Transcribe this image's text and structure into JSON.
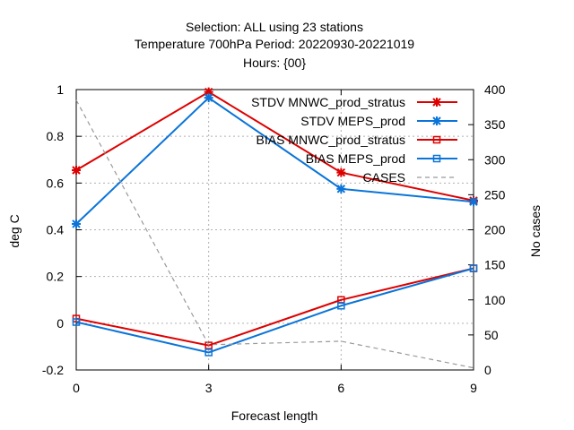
{
  "chart_data": {
    "type": "line",
    "title_lines": [
      "Selection: ALL using    23 stations",
      "Temperature 700hPa   Period: 20220930-20221019",
      "Hours: {00}"
    ],
    "xlabel": "Forecast length",
    "ylabel": "deg C",
    "y2label": "No cases",
    "x": [
      0,
      3,
      6,
      9
    ],
    "xlim": [
      0,
      9
    ],
    "ylim": [
      -0.2,
      1.0
    ],
    "y2lim": [
      0,
      400
    ],
    "x_ticks": [
      "0",
      "3",
      "6",
      "9"
    ],
    "y_ticks": [
      "-0.2",
      "0",
      "0.2",
      "0.4",
      "0.6",
      "0.8",
      "1"
    ],
    "y2_ticks": [
      "0",
      "50",
      "100",
      "150",
      "200",
      "250",
      "300",
      "350",
      "400"
    ],
    "grid": true,
    "legend_position": "top-right",
    "series": [
      {
        "name": "STDV MNWC_prod_stratus",
        "axis": "y",
        "marker": "star",
        "color": "#dd0000",
        "values": [
          0.655,
          0.99,
          0.645,
          0.525
        ]
      },
      {
        "name": "STDV MEPS_prod",
        "axis": "y",
        "marker": "star",
        "color": "#0a74d8",
        "values": [
          0.425,
          0.965,
          0.575,
          0.52
        ]
      },
      {
        "name": "BIAS MNWC_prod_stratus",
        "axis": "y",
        "marker": "square",
        "color": "#dd0000",
        "values": [
          0.02,
          -0.095,
          0.1,
          0.235
        ]
      },
      {
        "name": "BIAS MEPS_prod",
        "axis": "y",
        "marker": "square",
        "color": "#0a74d8",
        "values": [
          0.005,
          -0.125,
          0.075,
          0.235
        ]
      },
      {
        "name": "CASES",
        "axis": "y2",
        "marker": "none",
        "dashed": true,
        "color": "#999999",
        "values": [
          385,
          36,
          41,
          3
        ]
      }
    ]
  }
}
